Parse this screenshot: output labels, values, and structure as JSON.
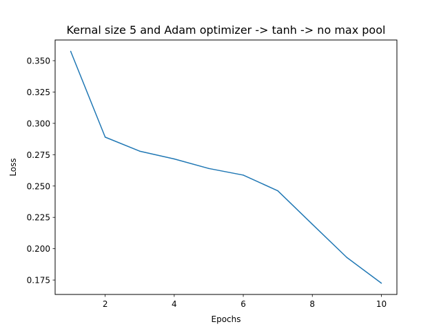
{
  "chart_data": {
    "type": "line",
    "title": "Kernal size 5 and Adam optimizer -> tanh -> no max pool",
    "xlabel": "Epochs",
    "ylabel": "Loss",
    "x": [
      1,
      2,
      3,
      4,
      5,
      6,
      7,
      8,
      9,
      10
    ],
    "series": [
      {
        "values": [
          0.3575,
          0.289,
          0.2778,
          0.2716,
          0.264,
          0.2587,
          0.2462,
          0.2195,
          0.193,
          0.1725
        ],
        "color": "#1f77b4"
      }
    ],
    "xlim": [
      0.55,
      10.45
    ],
    "ylim": [
      0.1635,
      0.3665
    ],
    "xticks": [
      2,
      4,
      6,
      8,
      10
    ],
    "xtick_labels": [
      "2",
      "4",
      "6",
      "8",
      "10"
    ],
    "yticks": [
      0.175,
      0.2,
      0.225,
      0.25,
      0.275,
      0.3,
      0.325,
      0.35
    ],
    "ytick_labels": [
      "0.175",
      "0.200",
      "0.225",
      "0.250",
      "0.275",
      "0.300",
      "0.325",
      "0.350"
    ],
    "grid": false,
    "legend": "none"
  }
}
